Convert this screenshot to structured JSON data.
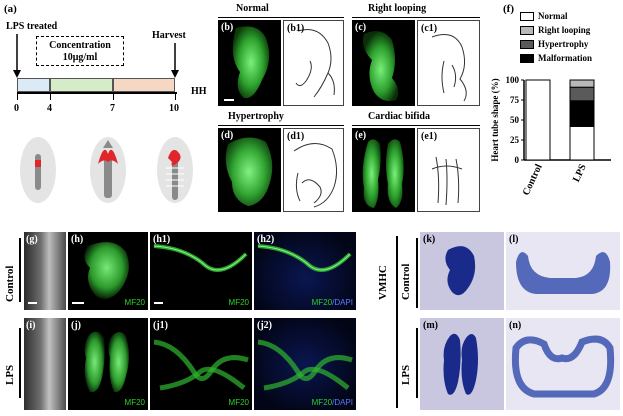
{
  "panel_a": {
    "label": "(a)",
    "lps_treated": "LPS treated",
    "concentration_title": "Concentration",
    "concentration_value": "10μg/ml",
    "harvest": "Harvest",
    "axis_unit": "HH",
    "ticks": [
      "0",
      "4",
      "7",
      "10"
    ],
    "segment_colors": [
      "#dce9f7",
      "#d6ecc9",
      "#f6d7c3"
    ]
  },
  "panel_b": {
    "label": "(b)",
    "title": "Normal",
    "sketch_label": "(b1)"
  },
  "panel_c": {
    "label": "(c)",
    "title": "Right looping",
    "sketch_label": "(c1)"
  },
  "panel_d": {
    "label": "(d)",
    "title": "Hypertrophy",
    "sketch_label": "(d1)"
  },
  "panel_e": {
    "label": "(e)",
    "title": "Cardiac bifida",
    "sketch_label": "(e1)"
  },
  "panel_f": {
    "label": "(f)"
  },
  "chart_data": {
    "type": "bar",
    "stacked": true,
    "categories": [
      "Control",
      "LPS"
    ],
    "ylabel": "Heart tube shape (%)",
    "ylim": [
      0,
      100
    ],
    "yticks": [
      "0",
      "25",
      "50",
      "75",
      "100"
    ],
    "series": [
      {
        "name": "Normal",
        "color": "#ffffff",
        "values": [
          100,
          42
        ]
      },
      {
        "name": "Malformation",
        "color": "#000000",
        "values": [
          0,
          32
        ]
      },
      {
        "name": "Hypertrophy",
        "color": "#5a5a5a",
        "values": [
          0,
          17
        ]
      },
      {
        "name": "Right looping",
        "color": "#b8b8b8",
        "values": [
          0,
          9
        ]
      }
    ],
    "legend_order": [
      "Normal",
      "Right looping",
      "Hypertrophy",
      "Malformation"
    ],
    "legend_position": "top"
  },
  "bottom": {
    "row_control": "Control",
    "row_lps": "LPS",
    "labels": {
      "g": "(g)",
      "h": "(h)",
      "h1": "(h1)",
      "h2": "(h2)",
      "i": "(i)",
      "j": "(j)",
      "j1": "(j1)",
      "j2": "(j2)",
      "k": "(k)",
      "l": "(l)",
      "m": "(m)",
      "n": "(n)"
    },
    "stain_mf20": "MF20",
    "stain_mf20_dapi_a": "MF20",
    "stain_mf20_dapi_b": "/DAPI",
    "vmhc": "VMHC",
    "vmhc_control": "Control",
    "vmhc_lps": "LPS"
  }
}
